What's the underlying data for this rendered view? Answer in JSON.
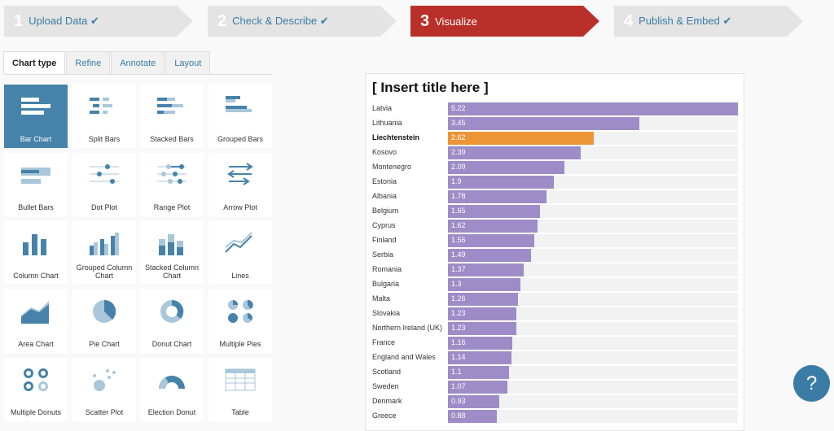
{
  "steps": [
    {
      "num": "1",
      "label": "Upload Data ✔",
      "active": false
    },
    {
      "num": "2",
      "label": "Check & Describe ✔",
      "active": false
    },
    {
      "num": "3",
      "label": "Visualize",
      "active": true
    },
    {
      "num": "4",
      "label": "Publish & Embed ✔",
      "active": false
    }
  ],
  "tabs": [
    "Chart type",
    "Refine",
    "Annotate",
    "Layout"
  ],
  "chart_types": [
    "Bar Chart",
    "Split Bars",
    "Stacked Bars",
    "Grouped Bars",
    "Bullet Bars",
    "Dot Plot",
    "Range Plot",
    "Arrow Plot",
    "Column Chart",
    "Grouped Column Chart",
    "Stacked Column Chart",
    "Lines",
    "Area Chart",
    "Pie Chart",
    "Donut Chart",
    "Multiple Pies",
    "Multiple Donuts",
    "Scatter Plot",
    "Election Donut",
    "Table"
  ],
  "help_label": "?",
  "colors": {
    "bar": "#9d8cc7",
    "highlight": "#ec9536",
    "accent": "#4682a9",
    "step_active": "#b9302a"
  },
  "chart_data": {
    "type": "bar",
    "title": "[ Insert title here ]",
    "highlight": "Liechtenstein",
    "xlim": [
      0,
      5.22
    ],
    "categories": [
      "Latvia",
      "Lithuania",
      "Liechtenstein",
      "Kosovo",
      "Montenegro",
      "Estonia",
      "Albania",
      "Belgium",
      "Cyprus",
      "Finland",
      "Serbia",
      "Romania",
      "Bulgaria",
      "Malta",
      "Slovakia",
      "Northern Ireland (UK)",
      "France",
      "England and Wales",
      "Scotland",
      "Sweden",
      "Denmark",
      "Greece"
    ],
    "values": [
      5.22,
      3.45,
      2.62,
      2.39,
      2.09,
      1.9,
      1.78,
      1.65,
      1.62,
      1.56,
      1.49,
      1.37,
      1.3,
      1.26,
      1.23,
      1.23,
      1.16,
      1.14,
      1.1,
      1.07,
      0.93,
      0.88
    ]
  }
}
